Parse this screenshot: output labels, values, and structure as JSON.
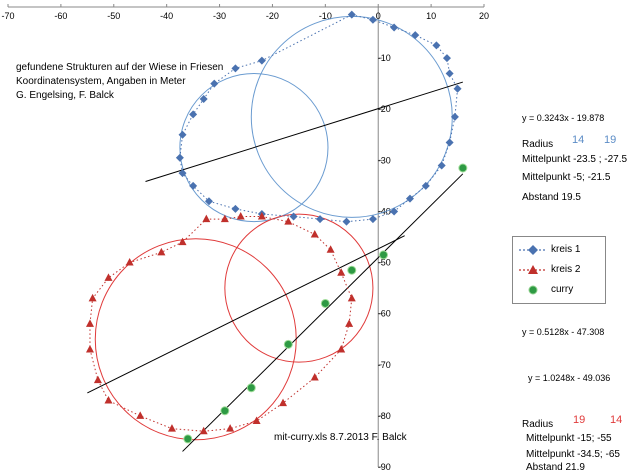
{
  "chart_data": {
    "type": "scatter",
    "title_lines": [
      "gefundene Strukturen auf der Wiese in Friesen",
      "Koordinatensystem, Angaben in Meter",
      "G. Engelsing, F. Balck"
    ],
    "xlim": [
      -70,
      20
    ],
    "ylim": [
      -90,
      0
    ],
    "x_ticks": [
      -70,
      -60,
      -50,
      -40,
      -30,
      -20,
      -10,
      0,
      10,
      20
    ],
    "y_ticks": [
      -10,
      -20,
      -30,
      -40,
      -50,
      -60,
      -70,
      -80,
      -90
    ],
    "x_tick_labels": [
      "-70",
      "-60",
      "-50",
      "-40",
      "-30",
      "-20",
      "-10",
      "0",
      "10",
      "20"
    ],
    "y_tick_labels": [
      "-10",
      "-20",
      "-30",
      "-40",
      "-50",
      "-60",
      "-70",
      "-80",
      "-90"
    ],
    "grid": false,
    "legend_position": "right",
    "series": [
      {
        "name": "kreis 1",
        "marker": "diamond",
        "color": "#4a72b0",
        "x": [
          -5,
          -1,
          3,
          7,
          11,
          13,
          13.5,
          15,
          14.5,
          13.5,
          12,
          9,
          6,
          3,
          -1,
          -6,
          -11,
          -16,
          -22,
          -27,
          -32,
          -35,
          -37,
          -37.5,
          -37,
          -35,
          -33,
          -31,
          -27,
          -22
        ],
        "y": [
          -1.5,
          -2.5,
          -4,
          -5.5,
          -7.5,
          -10,
          -13,
          -16,
          -21.5,
          -26.5,
          -31,
          -35,
          -37.5,
          -40,
          -41.5,
          -42,
          -41.5,
          -41,
          -40.5,
          -39.5,
          -38,
          -35,
          -32.5,
          -29.5,
          -25,
          -21,
          -18,
          -15,
          -12,
          -10.5
        ]
      },
      {
        "name": "kreis 2",
        "marker": "triangle",
        "color": "#c0302c",
        "x": [
          -37,
          -41,
          -47,
          -51,
          -54,
          -54.5,
          -54.5,
          -53,
          -51,
          -45,
          -39,
          -33,
          -28,
          -23,
          -18,
          -12,
          -7,
          -5.5,
          -5,
          -7,
          -9,
          -12,
          -17,
          -22,
          -26,
          -29,
          -32.5
        ],
        "y": [
          -46,
          -48,
          -50,
          -53,
          -57,
          -62,
          -67,
          -73,
          -77,
          -80,
          -82.5,
          -83,
          -82.5,
          -81,
          -77.5,
          -72.5,
          -67,
          -62,
          -57,
          -52,
          -47.5,
          -44.5,
          -42,
          -41,
          -41,
          -41.5,
          -41.5
        ]
      },
      {
        "name": "curry",
        "marker": "circle",
        "color": "#2e9a44",
        "x": [
          16,
          1,
          -5,
          -10,
          -17,
          -24,
          -29,
          -36
        ],
        "y": [
          -31.5,
          -48.5,
          -51.5,
          -58,
          -66,
          -74.5,
          -79,
          -84.5
        ]
      }
    ],
    "circles": [
      {
        "series": "kreis 1",
        "center": [
          -23.5,
          -27.5
        ],
        "radius": 14,
        "color": "#6a9bd0"
      },
      {
        "series": "kreis 1",
        "center": [
          -5,
          -21.5
        ],
        "radius": 19,
        "color": "#6a9bd0"
      },
      {
        "series": "kreis 2",
        "center": [
          -15,
          -55
        ],
        "radius": 14,
        "color": "#e03a3a"
      },
      {
        "series": "kreis 2",
        "center": [
          -34.5,
          -65
        ],
        "radius": 19,
        "color": "#e03a3a"
      }
    ],
    "trendlines": [
      {
        "slope": 0.3243,
        "intercept": -19.878,
        "x_range": [
          -44,
          16
        ],
        "color": "#000000"
      },
      {
        "slope": 0.5128,
        "intercept": -47.308,
        "x_range": [
          -55,
          5
        ],
        "color": "#000000"
      },
      {
        "slope": 1.0248,
        "intercept": -49.036,
        "x_range": [
          -37,
          16
        ],
        "color": "#000000"
      }
    ],
    "annotations": {
      "eq1": "y = 0.3243x - 19.878",
      "radius1_label": "Radius",
      "radius1_a": "14",
      "radius1_b": "19",
      "center1_a": "Mittelpunkt -23.5 ; -27.5",
      "center1_b": "Mittelpunkt    -5; -21.5",
      "distance1": "Abstand 19.5",
      "eq2": "y = 0.5128x - 47.308",
      "eq3": "y = 1.0248x - 49.036",
      "radius2_label": "Radius",
      "radius2_a": "19",
      "radius2_b": "14",
      "center2_a": "Mittelpunkt  -15; -55",
      "center2_b": "Mittelpunkt -34.5; -65",
      "distance2": "Abstand 21.9",
      "file_note": "mit-curry.xls 8.7.2013  F. Balck"
    }
  }
}
